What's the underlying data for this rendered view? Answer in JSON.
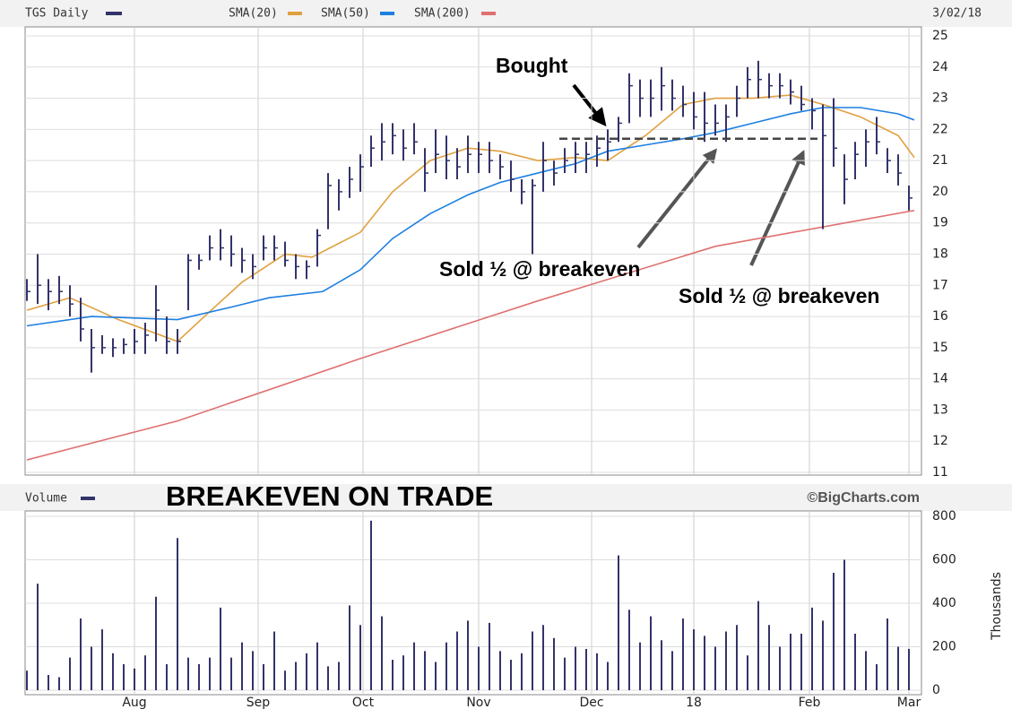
{
  "chart_data": [
    {
      "type": "hlc",
      "title": "TGS Daily",
      "date": "3/02/18",
      "color": "#33336b",
      "x": [
        0,
        2,
        4,
        6,
        8,
        10,
        12,
        14,
        16,
        18,
        20,
        22,
        24,
        26,
        28,
        30,
        32,
        34,
        36,
        38,
        40,
        42,
        44,
        46,
        48,
        50,
        52,
        54,
        56,
        58,
        60,
        62,
        64,
        66,
        68,
        70,
        72,
        74,
        76,
        78,
        80,
        82,
        84,
        86,
        88,
        90,
        92,
        94,
        96,
        98,
        100,
        102,
        104,
        106,
        108,
        110,
        112,
        114,
        116,
        118,
        120,
        122,
        124,
        126,
        128,
        130,
        132,
        134,
        136,
        138,
        140,
        142,
        144,
        146,
        148,
        150,
        152,
        154,
        156,
        158,
        160,
        162,
        164
      ],
      "high": [
        17.2,
        18.0,
        17.2,
        17.3,
        17.0,
        16.6,
        15.6,
        15.4,
        15.3,
        15.3,
        15.6,
        15.8,
        17.0,
        16.0,
        15.6,
        18.0,
        18.0,
        18.6,
        18.8,
        18.6,
        18.2,
        18.0,
        18.6,
        18.6,
        18.4,
        18.0,
        17.8,
        18.8,
        20.6,
        20.4,
        20.8,
        21.2,
        21.8,
        22.2,
        22.2,
        22.0,
        22.2,
        21.4,
        22.0,
        21.8,
        21.4,
        21.8,
        21.6,
        21.6,
        21.2,
        21.0,
        20.4,
        20.4,
        21.6,
        21.0,
        21.4,
        21.6,
        21.6,
        21.8,
        22.0,
        22.4,
        23.8,
        23.6,
        23.6,
        24.0,
        23.6,
        23.4,
        23.2,
        23.2,
        22.8,
        22.8,
        23.4,
        24.0,
        24.2,
        23.8,
        23.8,
        23.6,
        23.4,
        23.0,
        22.8,
        23.0,
        21.2,
        21.6,
        22.0,
        22.4,
        21.4,
        21.2,
        20.2
      ],
      "low": [
        16.5,
        16.4,
        16.2,
        16.4,
        16.0,
        15.2,
        14.2,
        14.8,
        14.7,
        14.8,
        14.8,
        14.8,
        15.2,
        14.8,
        14.8,
        16.2,
        17.5,
        17.8,
        17.8,
        17.6,
        17.4,
        17.2,
        17.8,
        17.8,
        17.6,
        17.2,
        17.2,
        17.6,
        18.8,
        19.4,
        19.8,
        20.0,
        20.8,
        21.0,
        21.2,
        21.0,
        21.2,
        20.0,
        20.6,
        20.4,
        20.4,
        20.6,
        20.6,
        20.6,
        20.4,
        20.0,
        19.6,
        18.0,
        20.0,
        20.2,
        20.6,
        20.6,
        20.6,
        20.8,
        21.0,
        21.6,
        22.2,
        22.4,
        22.4,
        22.6,
        22.6,
        22.4,
        22.0,
        21.6,
        21.8,
        21.6,
        22.4,
        23.0,
        23.0,
        23.0,
        23.0,
        22.8,
        22.6,
        22.0,
        18.8,
        20.8,
        19.6,
        20.4,
        20.8,
        21.2,
        20.6,
        20.2,
        19.4
      ],
      "close": [
        16.8,
        17.0,
        16.8,
        16.8,
        16.4,
        15.6,
        15.0,
        15.0,
        15.0,
        15.1,
        15.2,
        15.4,
        16.2,
        15.2,
        15.2,
        17.8,
        17.8,
        18.2,
        18.2,
        18.0,
        17.8,
        17.6,
        18.2,
        18.2,
        17.8,
        17.6,
        17.6,
        18.6,
        20.2,
        20.0,
        20.4,
        20.8,
        21.4,
        21.6,
        21.8,
        21.4,
        21.6,
        20.6,
        21.2,
        21.0,
        20.8,
        21.2,
        21.2,
        21.0,
        20.8,
        20.4,
        20.0,
        20.2,
        21.0,
        20.6,
        21.0,
        21.2,
        21.2,
        21.4,
        21.6,
        22.2,
        23.4,
        23.0,
        23.0,
        23.4,
        23.0,
        22.8,
        22.4,
        22.2,
        22.2,
        22.4,
        23.0,
        23.6,
        23.6,
        23.4,
        23.4,
        23.2,
        22.8,
        22.6,
        21.8,
        21.4,
        20.4,
        21.2,
        21.6,
        21.6,
        21.0,
        20.6,
        19.8
      ],
      "lines": [
        {
          "name": "SMA(20)",
          "color": "#e0a040",
          "x": [
            0,
            8,
            17,
            28,
            33,
            40,
            48,
            53,
            62,
            68,
            75,
            82,
            88,
            95,
            102,
            108,
            115,
            122,
            128,
            135,
            142,
            148,
            155,
            162,
            165
          ],
          "values": [
            16.2,
            16.6,
            15.9,
            15.2,
            16.0,
            17.1,
            18.0,
            17.9,
            18.7,
            20.0,
            21.0,
            21.4,
            21.3,
            21.0,
            21.1,
            21.0,
            21.8,
            22.8,
            23.0,
            23.0,
            23.1,
            22.8,
            22.4,
            21.8,
            21.1
          ]
        },
        {
          "name": "SMA(50)",
          "color": "#1e7fe0",
          "x": [
            0,
            12,
            28,
            38,
            45,
            55,
            62,
            68,
            75,
            82,
            88,
            95,
            102,
            108,
            115,
            122,
            128,
            135,
            142,
            148,
            155,
            162,
            165
          ],
          "values": [
            15.7,
            16.0,
            15.9,
            16.3,
            16.6,
            16.8,
            17.5,
            18.5,
            19.3,
            19.9,
            20.3,
            20.6,
            20.9,
            21.3,
            21.5,
            21.7,
            21.9,
            22.2,
            22.5,
            22.7,
            22.7,
            22.5,
            22.3
          ]
        },
        {
          "name": "SMA(200)",
          "color": "#e07070",
          "x": [
            0,
            28,
            62,
            95,
            128,
            165
          ],
          "values": [
            11.4,
            12.65,
            14.65,
            16.5,
            18.25,
            19.4
          ]
        }
      ],
      "breakeven": {
        "value": 21.7,
        "x": [
          99,
          147
        ]
      },
      "annotations": [
        "Bought",
        "Sold ½ @ breakeven",
        "Sold ½ @ breakeven"
      ],
      "xlim": [
        0,
        165
      ],
      "ylim": [
        11,
        25
      ],
      "yticks": [
        11,
        12,
        13,
        14,
        15,
        16,
        17,
        18,
        19,
        20,
        21,
        22,
        23,
        24,
        25
      ]
    },
    {
      "type": "bar",
      "title": "Volume",
      "headline": "BREAKEVEN ON TRADE",
      "source": "©BigCharts.com",
      "color": "#33336b",
      "values": [
        90,
        490,
        70,
        60,
        150,
        330,
        200,
        280,
        170,
        120,
        100,
        160,
        430,
        120,
        700,
        150,
        120,
        150,
        380,
        150,
        220,
        180,
        120,
        270,
        90,
        130,
        170,
        220,
        110,
        130,
        390,
        300,
        780,
        340,
        140,
        160,
        220,
        180,
        130,
        220,
        270,
        320,
        200,
        310,
        180,
        140,
        170,
        270,
        300,
        240,
        150,
        200,
        190,
        170,
        130,
        620,
        370,
        220,
        340,
        230,
        180,
        330,
        280,
        250,
        200,
        270,
        300,
        160,
        410,
        300,
        200,
        260,
        260,
        380,
        320,
        540,
        600,
        260,
        180,
        120,
        330,
        200,
        190
      ],
      "ylabel": "Thousands",
      "xlim": [
        0,
        165
      ],
      "ylim": [
        0,
        800
      ],
      "yticks": [
        0,
        200,
        400,
        600,
        800
      ],
      "xticks": [
        {
          "value": 20,
          "label": "Aug"
        },
        {
          "value": 43,
          "label": "Sep"
        },
        {
          "value": 62.5,
          "label": "Oct"
        },
        {
          "value": 84,
          "label": "Nov"
        },
        {
          "value": 105,
          "label": "Dec"
        },
        {
          "value": 124,
          "label": "18"
        },
        {
          "value": 145.5,
          "label": "Feb"
        },
        {
          "value": 164,
          "label": "Mar"
        }
      ]
    }
  ]
}
